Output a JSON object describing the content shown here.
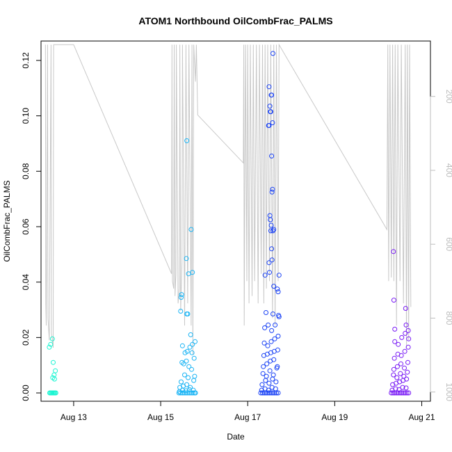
{
  "chart_data": {
    "type": "scatter",
    "title": "ATOM1 Northbound OilCombFrac_PALMS",
    "xlabel": "Date",
    "ylabel": "OilCombFrac_PALMS",
    "xlim": [
      12.25,
      21.2
    ],
    "ylim": [
      -0.003,
      0.127
    ],
    "x_ticks": [
      {
        "value": 13,
        "label": "Aug 13"
      },
      {
        "value": 15,
        "label": "Aug 15"
      },
      {
        "value": 17,
        "label": "Aug 17"
      },
      {
        "value": 19,
        "label": "Aug 19"
      },
      {
        "value": 21,
        "label": "Aug 21"
      }
    ],
    "y_ticks": [
      {
        "value": 0.0,
        "label": "0.00"
      },
      {
        "value": 0.02,
        "label": "0.02"
      },
      {
        "value": 0.04,
        "label": "0.04"
      },
      {
        "value": 0.06,
        "label": "0.06"
      },
      {
        "value": 0.08,
        "label": "0.08"
      },
      {
        "value": 0.1,
        "label": "0.10"
      },
      {
        "value": 0.12,
        "label": "0.12"
      }
    ],
    "y2_range": [
      1025,
      50
    ],
    "y2_ticks": [
      {
        "value": 200,
        "label": "200"
      },
      {
        "value": 400,
        "label": "400"
      },
      {
        "value": 600,
        "label": "600"
      },
      {
        "value": 800,
        "label": "800"
      },
      {
        "value": 1000,
        "label": "1000"
      }
    ],
    "series": [
      {
        "color": "#19f5d2",
        "points": [
          [
            12.45,
            0
          ],
          [
            12.47,
            0
          ],
          [
            12.49,
            0
          ],
          [
            12.51,
            0
          ],
          [
            12.53,
            0
          ],
          [
            12.55,
            0
          ],
          [
            12.57,
            0
          ],
          [
            12.59,
            0
          ],
          [
            12.44,
            0.0165
          ],
          [
            12.47,
            0.0175
          ],
          [
            12.51,
            0.0195
          ],
          [
            12.53,
            0.011
          ],
          [
            12.55,
            0.0065
          ],
          [
            12.52,
            0.0055
          ],
          [
            12.56,
            0.005
          ],
          [
            12.58,
            0.008
          ]
        ]
      },
      {
        "color": "#19b4f5",
        "points": [
          [
            15.42,
            0
          ],
          [
            15.46,
            0
          ],
          [
            15.5,
            0
          ],
          [
            15.54,
            0
          ],
          [
            15.58,
            0
          ],
          [
            15.62,
            0
          ],
          [
            15.66,
            0
          ],
          [
            15.7,
            0
          ],
          [
            15.74,
            0
          ],
          [
            15.78,
            0
          ],
          [
            15.8,
            0
          ],
          [
            15.43,
            0.0005
          ],
          [
            15.5,
            0.001
          ],
          [
            15.58,
            0.0008
          ],
          [
            15.66,
            0.0012
          ],
          [
            15.75,
            0.001
          ],
          [
            15.44,
            0.002
          ],
          [
            15.52,
            0.0025
          ],
          [
            15.6,
            0.003
          ],
          [
            15.68,
            0.002
          ],
          [
            15.76,
            0.0045
          ],
          [
            15.47,
            0.004
          ],
          [
            15.55,
            0.0065
          ],
          [
            15.63,
            0.0055
          ],
          [
            15.71,
            0.0085
          ],
          [
            15.78,
            0.006
          ],
          [
            15.49,
            0.011
          ],
          [
            15.53,
            0.0105
          ],
          [
            15.59,
            0.0115
          ],
          [
            15.65,
            0.0095
          ],
          [
            15.72,
            0.0145
          ],
          [
            15.77,
            0.0125
          ],
          [
            15.5,
            0.017
          ],
          [
            15.56,
            0.0145
          ],
          [
            15.61,
            0.015
          ],
          [
            15.67,
            0.0165
          ],
          [
            15.73,
            0.0175
          ],
          [
            15.79,
            0.0185
          ],
          [
            15.46,
            0.0295
          ],
          [
            15.47,
            0.0345
          ],
          [
            15.48,
            0.0355
          ],
          [
            15.6,
            0.0285
          ],
          [
            15.62,
            0.0285
          ],
          [
            15.69,
            0.021
          ],
          [
            15.59,
            0.0485
          ],
          [
            15.64,
            0.043
          ],
          [
            15.73,
            0.0435
          ],
          [
            15.7,
            0.059
          ],
          [
            15.6,
            0.091
          ]
        ]
      },
      {
        "color": "#1941f5",
        "points": [
          [
            17.3,
            0
          ],
          [
            17.34,
            0
          ],
          [
            17.38,
            0
          ],
          [
            17.42,
            0
          ],
          [
            17.46,
            0
          ],
          [
            17.5,
            0
          ],
          [
            17.54,
            0
          ],
          [
            17.58,
            0
          ],
          [
            17.62,
            0
          ],
          [
            17.66,
            0
          ],
          [
            17.7,
            0
          ],
          [
            17.32,
            0.001
          ],
          [
            17.4,
            0.0015
          ],
          [
            17.48,
            0.001
          ],
          [
            17.56,
            0.002
          ],
          [
            17.64,
            0.0015
          ],
          [
            17.33,
            0.003
          ],
          [
            17.41,
            0.0045
          ],
          [
            17.49,
            0.0035
          ],
          [
            17.57,
            0.005
          ],
          [
            17.65,
            0.004
          ],
          [
            17.35,
            0.007
          ],
          [
            17.43,
            0.006
          ],
          [
            17.51,
            0.008
          ],
          [
            17.59,
            0.0065
          ],
          [
            17.67,
            0.009
          ],
          [
            17.36,
            0.0095
          ],
          [
            17.44,
            0.0105
          ],
          [
            17.52,
            0.0115
          ],
          [
            17.6,
            0.012
          ],
          [
            17.68,
            0.0095
          ],
          [
            17.37,
            0.0135
          ],
          [
            17.45,
            0.014
          ],
          [
            17.53,
            0.0145
          ],
          [
            17.61,
            0.015
          ],
          [
            17.69,
            0.0155
          ],
          [
            17.38,
            0.018
          ],
          [
            17.46,
            0.017
          ],
          [
            17.54,
            0.0185
          ],
          [
            17.62,
            0.0195
          ],
          [
            17.7,
            0.0205
          ],
          [
            17.39,
            0.0235
          ],
          [
            17.47,
            0.0245
          ],
          [
            17.55,
            0.0225
          ],
          [
            17.63,
            0.0245
          ],
          [
            17.71,
            0.028
          ],
          [
            17.42,
            0.029
          ],
          [
            17.58,
            0.0285
          ],
          [
            17.72,
            0.0275
          ],
          [
            17.4,
            0.0425
          ],
          [
            17.5,
            0.0435
          ],
          [
            17.6,
            0.0385
          ],
          [
            17.68,
            0.0375
          ],
          [
            17.7,
            0.0365
          ],
          [
            17.72,
            0.0425
          ],
          [
            17.49,
            0.047
          ],
          [
            17.55,
            0.052
          ],
          [
            17.56,
            0.048
          ],
          [
            17.58,
            0.0585
          ],
          [
            17.6,
            0.059
          ],
          [
            17.52,
            0.0625
          ],
          [
            17.54,
            0.0605
          ],
          [
            17.51,
            0.064
          ],
          [
            17.53,
            0.0585
          ],
          [
            17.56,
            0.0725
          ],
          [
            17.57,
            0.0735
          ],
          [
            17.55,
            0.0855
          ],
          [
            17.48,
            0.0965
          ],
          [
            17.49,
            0.0965
          ],
          [
            17.52,
            0.1015
          ],
          [
            17.51,
            0.1035
          ],
          [
            17.53,
            0.1015
          ],
          [
            17.54,
            0.1075
          ],
          [
            17.55,
            0.1075
          ],
          [
            17.49,
            0.1105
          ],
          [
            17.57,
            0.0975
          ],
          [
            17.58,
            0.1225
          ]
        ]
      },
      {
        "color": "#7819f5",
        "points": [
          [
            20.3,
            0
          ],
          [
            20.34,
            0
          ],
          [
            20.38,
            0
          ],
          [
            20.42,
            0
          ],
          [
            20.46,
            0
          ],
          [
            20.5,
            0
          ],
          [
            20.54,
            0
          ],
          [
            20.58,
            0
          ],
          [
            20.62,
            0
          ],
          [
            20.66,
            0
          ],
          [
            20.7,
            0
          ],
          [
            20.32,
            0.001
          ],
          [
            20.4,
            0.0015
          ],
          [
            20.48,
            0.0012
          ],
          [
            20.56,
            0.002
          ],
          [
            20.64,
            0.0018
          ],
          [
            20.33,
            0.003
          ],
          [
            20.41,
            0.0035
          ],
          [
            20.49,
            0.004
          ],
          [
            20.57,
            0.0045
          ],
          [
            20.65,
            0.005
          ],
          [
            20.35,
            0.0065
          ],
          [
            20.43,
            0.0055
          ],
          [
            20.51,
            0.007
          ],
          [
            20.59,
            0.006
          ],
          [
            20.67,
            0.0075
          ],
          [
            20.36,
            0.0085
          ],
          [
            20.44,
            0.0095
          ],
          [
            20.52,
            0.0105
          ],
          [
            20.6,
            0.009
          ],
          [
            20.68,
            0.011
          ],
          [
            20.37,
            0.0125
          ],
          [
            20.45,
            0.014
          ],
          [
            20.53,
            0.0135
          ],
          [
            20.61,
            0.015
          ],
          [
            20.69,
            0.0165
          ],
          [
            20.38,
            0.0185
          ],
          [
            20.46,
            0.0175
          ],
          [
            20.54,
            0.02
          ],
          [
            20.62,
            0.0215
          ],
          [
            20.7,
            0.0195
          ],
          [
            20.38,
            0.023
          ],
          [
            20.64,
            0.0245
          ],
          [
            20.69,
            0.0225
          ],
          [
            20.36,
            0.0335
          ],
          [
            20.63,
            0.0305
          ],
          [
            20.35,
            0.051
          ]
        ]
      }
    ],
    "altitude_series": {
      "color": "#c8c8c8",
      "points": [
        [
          12.35,
          60
        ],
        [
          12.36,
          760
        ],
        [
          12.37,
          820
        ],
        [
          12.4,
          60
        ],
        [
          12.41,
          800
        ],
        [
          12.44,
          860
        ],
        [
          12.48,
          60
        ],
        [
          12.49,
          840
        ],
        [
          12.53,
          880
        ],
        [
          12.54,
          60
        ],
        [
          12.58,
          60
        ],
        [
          12.59,
          60
        ],
        [
          13.0,
          60
        ],
        [
          15.25,
          680
        ],
        [
          15.26,
          60
        ],
        [
          15.27,
          700
        ],
        [
          15.3,
          720
        ],
        [
          15.31,
          60
        ],
        [
          15.33,
          740
        ],
        [
          15.35,
          680
        ],
        [
          15.36,
          60
        ],
        [
          15.4,
          760
        ],
        [
          15.43,
          720
        ],
        [
          15.44,
          60
        ],
        [
          15.46,
          780
        ],
        [
          15.49,
          650
        ],
        [
          15.5,
          60
        ],
        [
          15.55,
          820
        ],
        [
          15.58,
          60
        ],
        [
          15.62,
          760
        ],
        [
          15.65,
          60
        ],
        [
          15.7,
          820
        ],
        [
          15.72,
          60
        ],
        [
          15.74,
          900
        ],
        [
          15.76,
          60
        ],
        [
          15.8,
          160
        ],
        [
          15.82,
          60
        ],
        [
          15.85,
          250
        ],
        [
          16.9,
          380
        ],
        [
          16.91,
          60
        ],
        [
          16.92,
          820
        ],
        [
          16.95,
          60
        ],
        [
          16.98,
          700
        ],
        [
          17.0,
          60
        ],
        [
          17.03,
          760
        ],
        [
          17.06,
          60
        ],
        [
          17.1,
          740
        ],
        [
          17.13,
          60
        ],
        [
          17.16,
          700
        ],
        [
          17.2,
          60
        ],
        [
          17.24,
          760
        ],
        [
          17.27,
          60
        ],
        [
          17.31,
          680
        ],
        [
          17.34,
          60
        ],
        [
          17.37,
          760
        ],
        [
          17.4,
          60
        ],
        [
          17.43,
          720
        ],
        [
          17.46,
          60
        ],
        [
          17.5,
          700
        ],
        [
          17.53,
          60
        ],
        [
          17.57,
          800
        ],
        [
          17.6,
          60
        ],
        [
          17.63,
          820
        ],
        [
          17.66,
          60
        ],
        [
          17.7,
          700
        ],
        [
          17.72,
          60
        ],
        [
          20.2,
          560
        ],
        [
          20.22,
          60
        ],
        [
          20.24,
          700
        ],
        [
          20.27,
          60
        ],
        [
          20.3,
          690
        ],
        [
          20.33,
          60
        ],
        [
          20.36,
          700
        ],
        [
          20.39,
          60
        ],
        [
          20.42,
          820
        ],
        [
          20.45,
          60
        ],
        [
          20.5,
          700
        ],
        [
          20.53,
          60
        ],
        [
          20.58,
          760
        ],
        [
          20.62,
          60
        ],
        [
          20.65,
          880
        ],
        [
          20.67,
          60
        ],
        [
          20.7,
          860
        ],
        [
          20.72,
          60
        ],
        [
          20.75,
          770
        ]
      ]
    }
  }
}
